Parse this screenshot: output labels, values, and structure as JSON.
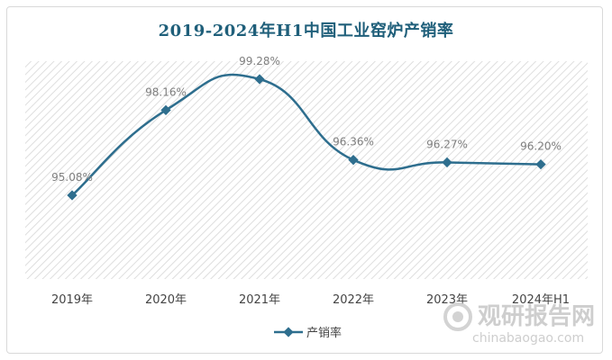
{
  "chart_data": {
    "type": "line",
    "title": "2019-2024年H1中国工业窑炉产销率",
    "categories": [
      "2019年",
      "2020年",
      "2021年",
      "2022年",
      "2023年",
      "2024年H1"
    ],
    "series": [
      {
        "name": "产销率",
        "values": [
          95.08,
          98.16,
          99.28,
          96.36,
          96.27,
          96.2
        ],
        "labels": [
          "95.08%",
          "98.16%",
          "99.28%",
          "96.36%",
          "96.27%",
          "96.20%"
        ]
      }
    ],
    "grid": false,
    "legend": "bottom-center",
    "colors": {
      "line": "#2e6e8e",
      "hatch": "#dcdcdc"
    }
  },
  "watermark": {
    "cn": "观研报告网",
    "en": "chinabaogao.com"
  }
}
